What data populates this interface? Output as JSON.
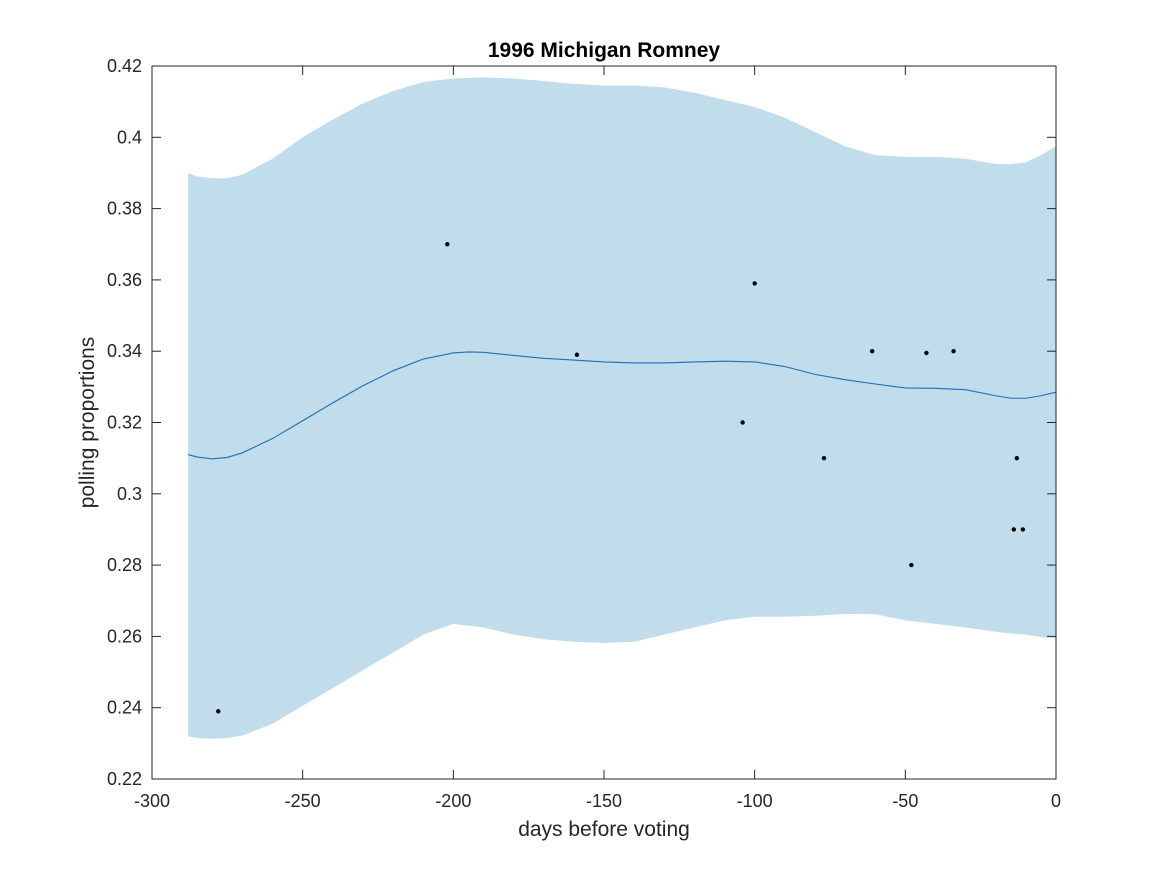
{
  "chart_data": {
    "type": "line",
    "title": "1996 Michigan Romney",
    "xlabel": "days before voting",
    "ylabel": "polling proportions",
    "xlim": [
      -300,
      0
    ],
    "ylim": [
      0.22,
      0.42
    ],
    "xticks": [
      -300,
      -250,
      -200,
      -150,
      -100,
      -50,
      0
    ],
    "xtick_labels": [
      "-300",
      "-250",
      "-200",
      "-150",
      "-100",
      "-50",
      "0"
    ],
    "yticks": [
      0.22,
      0.24,
      0.26,
      0.28,
      0.3,
      0.32,
      0.34,
      0.36,
      0.38,
      0.4,
      0.42
    ],
    "ytick_labels": [
      "0.22",
      "0.24",
      "0.26",
      "0.28",
      "0.3",
      "0.32",
      "0.34",
      "0.36",
      "0.38",
      "0.4",
      "0.42"
    ],
    "grid": false,
    "colors": {
      "band": "#c1dcea",
      "line": "#1f6fb5",
      "points": "#000000",
      "axes": "#262626"
    },
    "series": [
      {
        "kind": "band",
        "x": [
          -288,
          -285,
          -280,
          -275,
          -270,
          -260,
          -250,
          -240,
          -230,
          -220,
          -210,
          -200,
          -190,
          -180,
          -170,
          -160,
          -150,
          -140,
          -130,
          -120,
          -110,
          -100,
          -90,
          -80,
          -70,
          -60,
          -50,
          -40,
          -30,
          -20,
          -15,
          -10,
          -5,
          0
        ],
        "upper": [
          0.39,
          0.389,
          0.3885,
          0.3885,
          0.3895,
          0.394,
          0.4,
          0.405,
          0.4095,
          0.413,
          0.4155,
          0.4165,
          0.4168,
          0.4165,
          0.4158,
          0.415,
          0.4145,
          0.4145,
          0.414,
          0.4125,
          0.4105,
          0.4085,
          0.4055,
          0.4015,
          0.3975,
          0.395,
          0.3945,
          0.3945,
          0.394,
          0.3925,
          0.3925,
          0.393,
          0.395,
          0.3975
        ],
        "lower": [
          0.232,
          0.2315,
          0.2313,
          0.2315,
          0.2322,
          0.2355,
          0.2405,
          0.2455,
          0.2505,
          0.2555,
          0.2605,
          0.2635,
          0.2625,
          0.2605,
          0.2592,
          0.2585,
          0.2582,
          0.2585,
          0.2605,
          0.2625,
          0.2645,
          0.2655,
          0.2655,
          0.2658,
          0.2663,
          0.2662,
          0.2645,
          0.2635,
          0.2625,
          0.2613,
          0.2608,
          0.2605,
          0.2598,
          0.2595
        ]
      },
      {
        "kind": "line",
        "x": [
          -288,
          -285,
          -280,
          -275,
          -270,
          -260,
          -250,
          -240,
          -230,
          -220,
          -210,
          -200,
          -195,
          -190,
          -180,
          -170,
          -160,
          -150,
          -140,
          -130,
          -120,
          -110,
          -100,
          -90,
          -80,
          -70,
          -60,
          -50,
          -40,
          -30,
          -20,
          -15,
          -10,
          -5,
          0
        ],
        "y": [
          0.311,
          0.3103,
          0.3098,
          0.3102,
          0.3115,
          0.3155,
          0.3205,
          0.3255,
          0.3303,
          0.3345,
          0.3378,
          0.3395,
          0.3398,
          0.3397,
          0.3388,
          0.338,
          0.3375,
          0.337,
          0.3367,
          0.3367,
          0.337,
          0.3372,
          0.337,
          0.3357,
          0.3335,
          0.332,
          0.3308,
          0.3297,
          0.3296,
          0.3292,
          0.3275,
          0.3268,
          0.3268,
          0.3275,
          0.3285
        ]
      },
      {
        "kind": "scatter",
        "x": [
          -278,
          -202,
          -159,
          -104,
          -100,
          -77,
          -61,
          -48,
          -43,
          -34,
          -14,
          -13,
          -11
        ],
        "y": [
          0.239,
          0.37,
          0.339,
          0.32,
          0.359,
          0.31,
          0.34,
          0.28,
          0.3395,
          0.34,
          0.29,
          0.31,
          0.29
        ]
      }
    ]
  }
}
